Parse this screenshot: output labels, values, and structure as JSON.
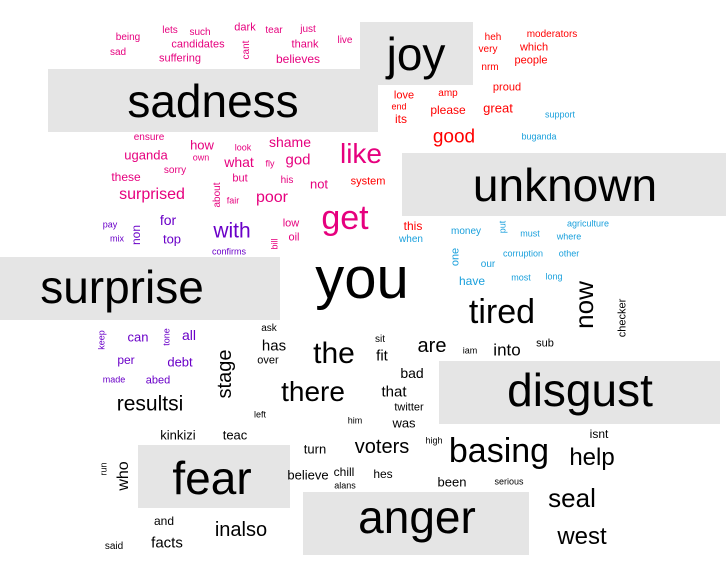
{
  "colors": {
    "category_label": "#000000",
    "category_box": "#e5e5e5",
    "sadness": "#e6007e",
    "joy": "#ff0000",
    "surprise": "#6a00c8",
    "unknown": "#1aa0dc",
    "neutral": "#000000"
  },
  "categories": {
    "joy": "joy",
    "sadness": "sadness",
    "unknown": "unknown",
    "surprise": "surprise",
    "disgust": "disgust",
    "fear": "fear",
    "anger": "anger"
  },
  "words": {
    "sadness": [
      "being",
      "lets",
      "such",
      "dark",
      "tear",
      "just",
      "sad",
      "candidates",
      "suffering",
      "cant",
      "thank",
      "believes",
      "live",
      "shame",
      "how",
      "ensure",
      "look",
      "own",
      "god",
      "like",
      "uganda",
      "what",
      "fly",
      "sorry",
      "these",
      "but",
      "his",
      "surprised",
      "about",
      "fair",
      "poor",
      "not",
      "get",
      "low",
      "oil",
      "bill"
    ],
    "joy": [
      "heh",
      "moderators",
      "very",
      "which",
      "nrm",
      "people",
      "proud",
      "amp",
      "love",
      "end",
      "please",
      "great",
      "its",
      "good",
      "system",
      "this"
    ],
    "surprise": [
      "for",
      "pay",
      "non",
      "with",
      "mix",
      "top",
      "confirms",
      "keep",
      "can",
      "tone",
      "all",
      "per",
      "debt",
      "made",
      "abed"
    ],
    "unknown": [
      "support",
      "buganda",
      "money",
      "put",
      "agriculture",
      "must",
      "where",
      "when",
      "one",
      "corruption",
      "other",
      "our",
      "have",
      "most",
      "long"
    ],
    "neutral": [
      "you",
      "tired",
      "now",
      "checker",
      "ask",
      "sit",
      "has",
      "the",
      "are",
      "iam",
      "into",
      "sub",
      "fit",
      "over",
      "stage",
      "bad",
      "there",
      "that",
      "twitter",
      "left",
      "him",
      "was",
      "resultsi",
      "kinkizi",
      "teac",
      "voters",
      "high",
      "isnt",
      "basing",
      "turn",
      "help",
      "run",
      "who",
      "believe",
      "chill",
      "hes",
      "been",
      "serious",
      "alans",
      "seal",
      "and",
      "inalso",
      "facts",
      "west",
      "said",
      "men"
    ]
  }
}
